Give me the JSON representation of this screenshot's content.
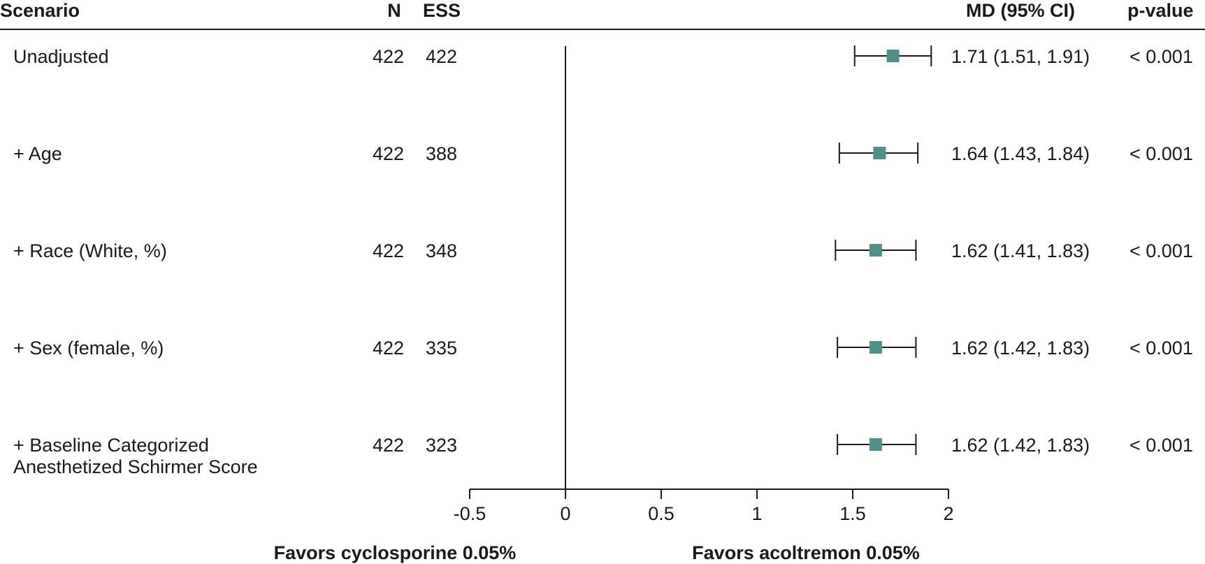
{
  "header": {
    "scenario": "Scenario",
    "n": "N",
    "ess": "ESS",
    "md": "MD (95% CI)",
    "pvalue": "p-value"
  },
  "axis": {
    "ticks": [
      "-0.5",
      "0",
      "0.5",
      "1",
      "1.5",
      "2"
    ],
    "favors_left": "Favors cyclosporine 0.05%",
    "favors_right": "Favors acoltremon 0.05%"
  },
  "chart_data": {
    "type": "forest",
    "xlim": [
      -0.5,
      2
    ],
    "reference_line": 0,
    "marker_color": "#4f9088",
    "rows": [
      {
        "label": [
          "Unadjusted"
        ],
        "n": "422",
        "ess": "422",
        "md": 1.71,
        "lower": 1.51,
        "upper": 1.91,
        "md_text": "1.71 (1.51, 1.91)",
        "p": "< 0.001"
      },
      {
        "label": [
          "+ Age"
        ],
        "n": "422",
        "ess": "388",
        "md": 1.64,
        "lower": 1.43,
        "upper": 1.84,
        "md_text": "1.64 (1.43, 1.84)",
        "p": "< 0.001"
      },
      {
        "label": [
          "+ Race (White, %)"
        ],
        "n": "422",
        "ess": "348",
        "md": 1.62,
        "lower": 1.41,
        "upper": 1.83,
        "md_text": "1.62 (1.41, 1.83)",
        "p": "< 0.001"
      },
      {
        "label": [
          "+ Sex (female, %)"
        ],
        "n": "422",
        "ess": "335",
        "md": 1.62,
        "lower": 1.42,
        "upper": 1.83,
        "md_text": "1.62 (1.42, 1.83)",
        "p": "< 0.001"
      },
      {
        "label": [
          "+ Baseline Categorized",
          "Anesthetized Schirmer Score"
        ],
        "n": "422",
        "ess": "323",
        "md": 1.62,
        "lower": 1.42,
        "upper": 1.83,
        "md_text": "1.62 (1.42, 1.83)",
        "p": "< 0.001"
      }
    ]
  }
}
